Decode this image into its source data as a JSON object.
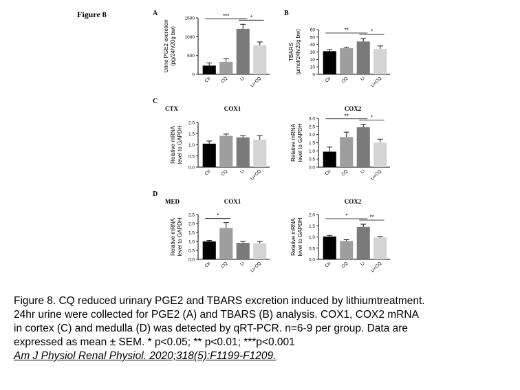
{
  "figure": {
    "title": "Figure 8",
    "panel_labels": {
      "A": "A",
      "B": "B",
      "C": "C",
      "D": "D"
    },
    "row_labels": {
      "C": "CTX",
      "D": "MED"
    },
    "caption_lines": [
      "Figure 8. CQ reduced urinary PGE2 and TBARS excretion induced by lithiumtreatment.",
      "24hr urine were collected for PGE2 (A) and TBARS (B) analysis. COX1, COX2 mRNA",
      "in cortex (C) and medulla (D) was detected by qRT-PCR. n=6-9 per group. Data are",
      "expressed as mean ± SEM. * p<0.05; ** p<0.01; ***p<0.001"
    ],
    "citation": "Am J Physiol Renal Physiol. 2020;318(5):F1199-F1209."
  },
  "colors": {
    "Ctr": "#000000",
    "CQ": "#9e9e9e",
    "Li": "#7a7a7a",
    "Li+CQ": "#d4d4d4"
  },
  "chart_data": [
    {
      "id": "A",
      "type": "bar",
      "title": "",
      "ylabel": "Urine PGE2 excretion (pg/24h/20g bw)",
      "categories": [
        "Ctr",
        "CQ",
        "Li",
        "Li+CQ"
      ],
      "values": [
        230,
        330,
        1210,
        770
      ],
      "errors": [
        70,
        80,
        120,
        90
      ],
      "ylim": [
        0,
        1500
      ],
      "yticks": [
        0,
        500,
        1000,
        1500
      ],
      "significance": [
        {
          "from": 0,
          "to": 2,
          "label": "***"
        },
        {
          "from": 2,
          "to": 3,
          "label": "*"
        }
      ]
    },
    {
      "id": "B",
      "type": "bar",
      "title": "",
      "ylabel": "TBARS (µmol/24h/20g bw)",
      "categories": [
        "Ctr",
        "CQ",
        "Li",
        "Li+CQ"
      ],
      "values": [
        31,
        35,
        44,
        34
      ],
      "errors": [
        2,
        1.5,
        4,
        4
      ],
      "ylim": [
        0,
        60
      ],
      "yticks": [
        0,
        10,
        20,
        30,
        40,
        50,
        60
      ],
      "significance": [
        {
          "from": 0,
          "to": 2,
          "label": "**"
        },
        {
          "from": 2,
          "to": 3,
          "label": "*"
        }
      ]
    },
    {
      "id": "C1",
      "type": "bar",
      "title": "COX1",
      "ylabel": "Relative mRNA level to GAPDH",
      "categories": [
        "Ctr",
        "CQ",
        "Li",
        "Li+CQ"
      ],
      "values": [
        1.05,
        1.4,
        1.33,
        1.23
      ],
      "errors": [
        0.12,
        0.08,
        0.07,
        0.18
      ],
      "ylim": [
        0,
        2.0
      ],
      "yticks": [
        0.0,
        0.5,
        1.0,
        1.5,
        2.0
      ],
      "significance": []
    },
    {
      "id": "C2",
      "type": "bar",
      "title": "COX2",
      "ylabel": "Relative mRNA level to GAPDH",
      "categories": [
        "Ctr",
        "CQ",
        "Li",
        "Li+CQ"
      ],
      "values": [
        0.95,
        1.85,
        2.45,
        1.5
      ],
      "errors": [
        0.28,
        0.3,
        0.18,
        0.22
      ],
      "ylim": [
        0,
        3.0
      ],
      "yticks": [
        0.0,
        0.5,
        1.0,
        1.5,
        2.0,
        2.5,
        3.0
      ],
      "significance": [
        {
          "from": 0,
          "to": 2,
          "label": "**"
        },
        {
          "from": 2,
          "to": 3,
          "label": "*"
        }
      ]
    },
    {
      "id": "D1",
      "type": "bar",
      "title": "COX1",
      "ylabel": "Relative mRNA level to GAPDH",
      "categories": [
        "Ctr",
        "CQ",
        "Li",
        "Li+CQ"
      ],
      "values": [
        1.0,
        1.75,
        0.92,
        0.9
      ],
      "errors": [
        0.06,
        0.3,
        0.08,
        0.1
      ],
      "ylim": [
        0,
        2.5
      ],
      "yticks": [
        0.0,
        0.5,
        1.0,
        1.5,
        2.0,
        2.5
      ],
      "significance": [
        {
          "from": 0,
          "to": 1,
          "label": "*"
        }
      ]
    },
    {
      "id": "D2",
      "type": "bar",
      "title": "COX2",
      "ylabel": "Relative mRNA level to GAPDH",
      "categories": [
        "Ctr",
        "CQ",
        "Li",
        "Li+CQ"
      ],
      "values": [
        1.02,
        0.82,
        1.45,
        0.98
      ],
      "errors": [
        0.05,
        0.06,
        0.12,
        0.04
      ],
      "ylim": [
        0,
        2.0
      ],
      "yticks": [
        0.0,
        0.5,
        1.0,
        1.5,
        2.0
      ],
      "significance": [
        {
          "from": 0,
          "to": 2,
          "label": "*"
        },
        {
          "from": 2,
          "to": 3,
          "label": "**"
        }
      ]
    }
  ]
}
